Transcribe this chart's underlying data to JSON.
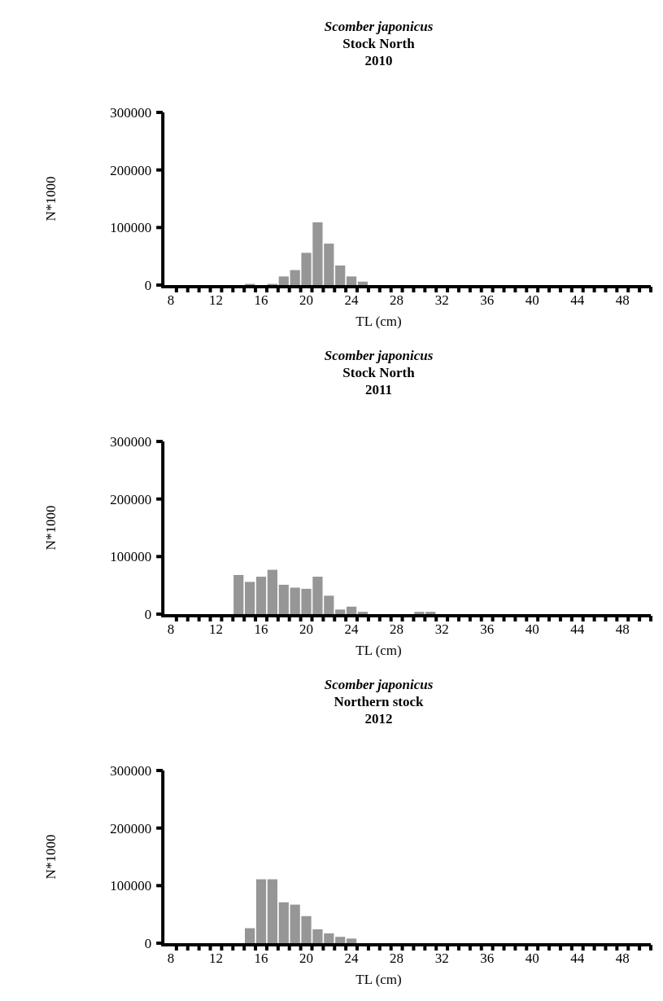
{
  "chart_data": [
    {
      "type": "bar",
      "title": "Scomber japonicus\nStock North\n2010",
      "xlabel": "TL (cm)",
      "ylabel": "N*1000",
      "color": "#969696",
      "categories": [
        "8",
        null,
        null,
        null,
        "12",
        null,
        null,
        null,
        "16",
        null,
        null,
        null,
        "20",
        null,
        null,
        null,
        "24",
        null,
        null,
        null,
        "28",
        null,
        null,
        null,
        "32",
        null,
        null,
        null,
        "36",
        null,
        null,
        null,
        "40",
        null,
        null,
        null,
        "44",
        null,
        null,
        null,
        "48",
        null,
        null
      ],
      "values": [
        0,
        0,
        0,
        0,
        0,
        0,
        0,
        2000,
        0,
        2000,
        15000,
        26000,
        56000,
        109000,
        72000,
        34000,
        15000,
        6000,
        0,
        0,
        0,
        0,
        0,
        0,
        0,
        0,
        0,
        0,
        0,
        0,
        0,
        0,
        0,
        0,
        0,
        0,
        0,
        0,
        0,
        0,
        0,
        0,
        0
      ],
      "ylim": [
        0,
        300000
      ],
      "yticks": [
        0,
        100000,
        200000,
        300000
      ]
    },
    {
      "type": "bar",
      "title": "Scomber japonicus\nStock North\n2011",
      "xlabel": "TL (cm)",
      "ylabel": "N*1000",
      "color": "#969696",
      "categories": [
        "8",
        null,
        null,
        null,
        "12",
        null,
        null,
        null,
        "16",
        null,
        null,
        null,
        "20",
        null,
        null,
        null,
        "24",
        null,
        null,
        null,
        "28",
        null,
        null,
        null,
        "32",
        null,
        null,
        null,
        "36",
        null,
        null,
        null,
        "40",
        null,
        null,
        null,
        "44",
        null,
        null,
        null,
        "48",
        null,
        null
      ],
      "values": [
        0,
        0,
        0,
        0,
        0,
        0,
        68000,
        56000,
        65000,
        77000,
        51000,
        46000,
        44000,
        65000,
        32000,
        8000,
        13000,
        4000,
        0,
        0,
        0,
        0,
        4000,
        4000,
        0,
        0,
        0,
        0,
        0,
        0,
        0,
        0,
        0,
        0,
        0,
        0,
        0,
        0,
        0,
        0,
        0,
        0,
        0
      ],
      "ylim": [
        0,
        300000
      ],
      "yticks": [
        0,
        100000,
        200000,
        300000
      ]
    },
    {
      "type": "bar",
      "title": "Scomber japonicus\nNorthern stock\n2012",
      "xlabel": "TL (cm)",
      "ylabel": "N*1000",
      "color": "#969696",
      "categories": [
        "8",
        null,
        null,
        null,
        "12",
        null,
        null,
        null,
        "16",
        null,
        null,
        null,
        "20",
        null,
        null,
        null,
        "24",
        null,
        null,
        null,
        "28",
        null,
        null,
        null,
        "32",
        null,
        null,
        null,
        "36",
        null,
        null,
        null,
        "40",
        null,
        null,
        null,
        "44",
        null,
        null,
        null,
        "48",
        null,
        null
      ],
      "values": [
        0,
        0,
        0,
        0,
        0,
        0,
        0,
        26000,
        111000,
        111000,
        71000,
        67000,
        47000,
        24000,
        17000,
        11000,
        8000,
        0,
        0,
        0,
        0,
        0,
        0,
        0,
        0,
        0,
        0,
        0,
        0,
        0,
        0,
        0,
        0,
        0,
        0,
        0,
        0,
        0,
        0,
        0,
        0,
        0,
        0
      ],
      "ylim": [
        0,
        300000
      ],
      "yticks": [
        0,
        100000,
        200000,
        300000
      ]
    }
  ]
}
